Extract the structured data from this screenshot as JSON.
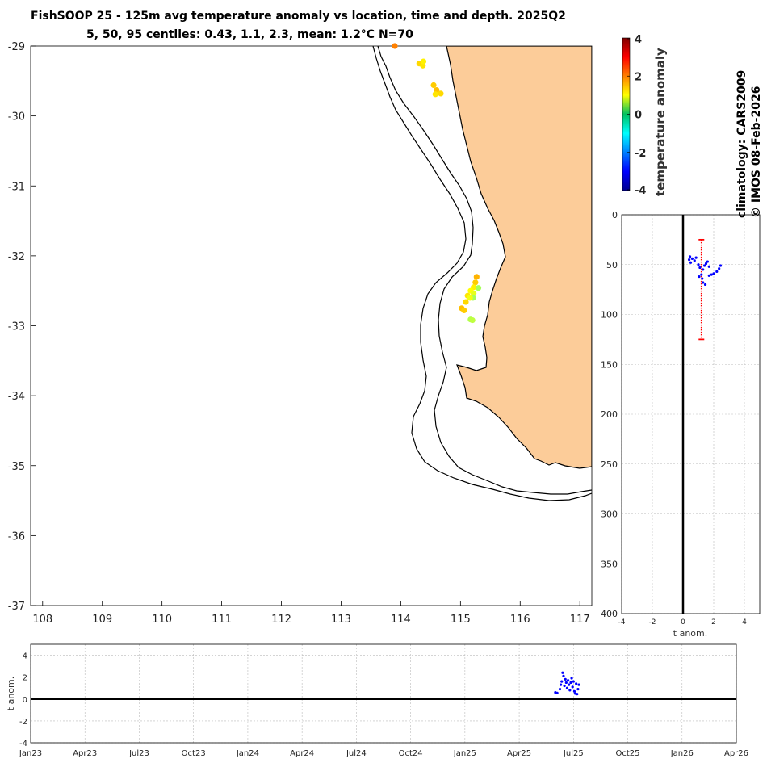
{
  "title_line1": "FishSOOP 25 - 125m avg temperature anomaly vs location, time and depth. 2025Q2",
  "title_line2": "5, 50, 95 centiles: 0.43, 1.1, 2.3, mean: 1.2°C N=70",
  "colorbar_label": "temperature anomaly",
  "climatology_label": "climatology: CARS2009",
  "copyright_label": "© IMOS 08-Feb-2026",
  "colors": {
    "land": "#fccc99",
    "coast": "#000000",
    "depth_points": "#0000ff",
    "range_bar": "#ff0000",
    "zero_line": "#000000"
  },
  "chart_data": [
    {
      "type": "scatter",
      "name": "map",
      "xlim": [
        107.8,
        117.2
      ],
      "ylim": [
        -37,
        -29
      ],
      "xticks": [
        108,
        109,
        110,
        111,
        112,
        113,
        114,
        115,
        116,
        117
      ],
      "yticks": [
        -29,
        -30,
        -31,
        -32,
        -33,
        -34,
        -35,
        -36,
        -37
      ],
      "color_by": "temperature anomaly",
      "colorbar": {
        "min": -4,
        "max": 4,
        "ticks": [
          4,
          2,
          0,
          -2,
          -4
        ]
      },
      "points": [
        {
          "lon": 113.9,
          "lat": -29.0,
          "anom": 2.0
        },
        {
          "lon": 114.31,
          "lat": -29.25,
          "anom": 1.3
        },
        {
          "lon": 114.37,
          "lat": -29.28,
          "anom": 1.2
        },
        {
          "lon": 114.38,
          "lat": -29.22,
          "anom": 1.1
        },
        {
          "lon": 114.55,
          "lat": -29.56,
          "anom": 1.4
        },
        {
          "lon": 114.6,
          "lat": -29.63,
          "anom": 1.5
        },
        {
          "lon": 114.58,
          "lat": -29.69,
          "anom": 1.2
        },
        {
          "lon": 114.67,
          "lat": -29.68,
          "anom": 1.3
        },
        {
          "lon": 115.27,
          "lat": -32.3,
          "anom": 1.6
        },
        {
          "lon": 115.25,
          "lat": -32.38,
          "anom": 1.4
        },
        {
          "lon": 115.22,
          "lat": -32.45,
          "anom": 1.1
        },
        {
          "lon": 115.3,
          "lat": -32.46,
          "anom": 0.3
        },
        {
          "lon": 115.17,
          "lat": -32.5,
          "anom": 1.0
        },
        {
          "lon": 115.22,
          "lat": -32.54,
          "anom": 0.8
        },
        {
          "lon": 115.12,
          "lat": -32.57,
          "anom": 1.2
        },
        {
          "lon": 115.21,
          "lat": -32.6,
          "anom": 0.3
        },
        {
          "lon": 115.16,
          "lat": -32.6,
          "anom": 0.9
        },
        {
          "lon": 115.09,
          "lat": -32.66,
          "anom": 1.3
        },
        {
          "lon": 115.02,
          "lat": -32.75,
          "anom": 1.5
        },
        {
          "lon": 115.06,
          "lat": -32.78,
          "anom": 1.4
        },
        {
          "lon": 115.17,
          "lat": -32.91,
          "anom": 0.4
        },
        {
          "lon": 115.2,
          "lat": -32.92,
          "anom": 0.5
        }
      ]
    },
    {
      "type": "scatter",
      "name": "depth_profile",
      "xlabel": "t anom.",
      "xlim": [
        -4,
        5
      ],
      "ylim": [
        0,
        400
      ],
      "xticks": [
        -4,
        -2,
        0,
        2,
        4
      ],
      "yticks": [
        0,
        50,
        100,
        150,
        200,
        250,
        300,
        350,
        400
      ],
      "grid": true,
      "zero_line_x": 0,
      "range_bar": {
        "x": 1.2,
        "depth_min": 25,
        "depth_max": 125
      },
      "points": [
        {
          "x": 0.4,
          "depth": 45
        },
        {
          "x": 0.45,
          "depth": 42
        },
        {
          "x": 0.5,
          "depth": 48
        },
        {
          "x": 0.6,
          "depth": 44
        },
        {
          "x": 0.75,
          "depth": 46
        },
        {
          "x": 0.85,
          "depth": 43
        },
        {
          "x": 1.0,
          "depth": 50
        },
        {
          "x": 1.1,
          "depth": 53
        },
        {
          "x": 1.3,
          "depth": 55
        },
        {
          "x": 1.4,
          "depth": 51
        },
        {
          "x": 1.5,
          "depth": 49
        },
        {
          "x": 1.6,
          "depth": 47
        },
        {
          "x": 1.7,
          "depth": 52
        },
        {
          "x": 1.2,
          "depth": 60
        },
        {
          "x": 1.25,
          "depth": 64
        },
        {
          "x": 1.3,
          "depth": 68
        },
        {
          "x": 1.45,
          "depth": 70
        },
        {
          "x": 1.7,
          "depth": 61
        },
        {
          "x": 1.85,
          "depth": 60
        },
        {
          "x": 2.0,
          "depth": 59
        },
        {
          "x": 2.2,
          "depth": 57
        },
        {
          "x": 2.35,
          "depth": 54
        },
        {
          "x": 2.45,
          "depth": 51
        },
        {
          "x": 1.05,
          "depth": 62
        }
      ]
    },
    {
      "type": "scatter",
      "name": "time_series",
      "ylabel": "t anom.",
      "ylim": [
        -4,
        5
      ],
      "yticks": [
        4,
        2,
        0,
        -2,
        -4
      ],
      "grid": true,
      "zero_line_y": 0,
      "xticks": [
        "Jan23",
        "Apr23",
        "Jul23",
        "Oct23",
        "Jan24",
        "Apr24",
        "Jul24",
        "Oct24",
        "Jan25",
        "Apr25",
        "Jul25",
        "Oct25",
        "Jan26",
        "Apr26"
      ],
      "points": [
        {
          "month": 29.0,
          "y": 0.6
        },
        {
          "month": 29.1,
          "y": 0.55
        },
        {
          "month": 29.25,
          "y": 0.9
        },
        {
          "month": 29.3,
          "y": 1.3
        },
        {
          "month": 29.35,
          "y": 1.6
        },
        {
          "month": 29.4,
          "y": 2.4
        },
        {
          "month": 29.45,
          "y": 2.1
        },
        {
          "month": 29.5,
          "y": 1.2
        },
        {
          "month": 29.55,
          "y": 1.8
        },
        {
          "month": 29.6,
          "y": 1.5
        },
        {
          "month": 29.65,
          "y": 1.0
        },
        {
          "month": 29.7,
          "y": 1.7
        },
        {
          "month": 29.75,
          "y": 1.3
        },
        {
          "month": 29.8,
          "y": 0.8
        },
        {
          "month": 29.85,
          "y": 1.5
        },
        {
          "month": 29.9,
          "y": 1.9
        },
        {
          "month": 29.95,
          "y": 1.1
        },
        {
          "month": 30.0,
          "y": 1.6
        },
        {
          "month": 30.05,
          "y": 0.7
        },
        {
          "month": 30.1,
          "y": 0.5
        },
        {
          "month": 30.15,
          "y": 1.4
        },
        {
          "month": 30.2,
          "y": 0.45
        },
        {
          "month": 30.25,
          "y": 0.9
        },
        {
          "month": 30.3,
          "y": 1.3
        }
      ]
    }
  ]
}
